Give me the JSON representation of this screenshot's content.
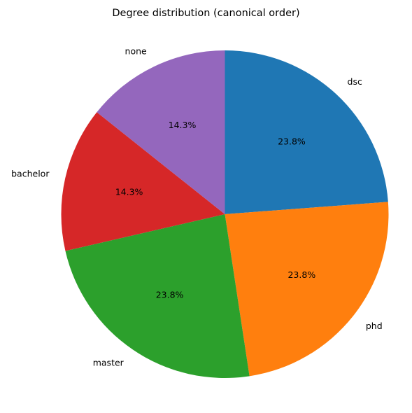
{
  "chart_data": {
    "type": "pie",
    "title": "Degree distribution (canonical order)",
    "categories": [
      "dsc",
      "phd",
      "master",
      "bachelor",
      "none"
    ],
    "values": [
      23.8,
      23.8,
      23.8,
      14.3,
      14.3
    ],
    "value_labels": [
      "23.8%",
      "23.8%",
      "23.8%",
      "14.3%",
      "14.3%"
    ],
    "colors": [
      "#1f77b4",
      "#ff7f0e",
      "#2ca02c",
      "#d62728",
      "#9467bd"
    ],
    "start_angle_deg": 90,
    "direction": "clockwise",
    "legend": "none"
  }
}
